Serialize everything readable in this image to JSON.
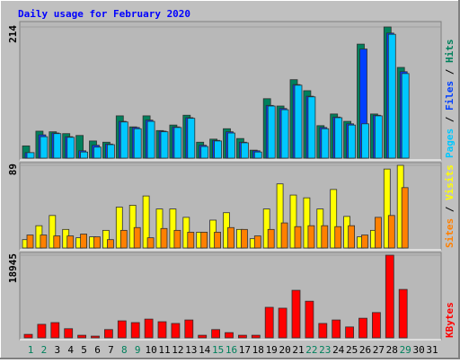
{
  "chart_data": {
    "type": "bar",
    "title": "Daily usage for February 2020",
    "categories": [
      "1",
      "2",
      "3",
      "4",
      "5",
      "6",
      "7",
      "8",
      "9",
      "10",
      "11",
      "12",
      "13",
      "14",
      "15",
      "16",
      "17",
      "18",
      "19",
      "20",
      "21",
      "22",
      "23",
      "24",
      "25",
      "26",
      "27",
      "28",
      "29",
      "30",
      "31"
    ],
    "category_colors": [
      "#00805c",
      "#00805c",
      "#000000",
      "#000000",
      "#000000",
      "#000000",
      "#000000",
      "#00805c",
      "#00805c",
      "#000000",
      "#000000",
      "#000000",
      "#000000",
      "#000000",
      "#00805c",
      "#00805c",
      "#000000",
      "#000000",
      "#000000",
      "#000000",
      "#000000",
      "#00805c",
      "#00805c",
      "#000000",
      "#000000",
      "#000000",
      "#000000",
      "#000000",
      "#00805c",
      "#000000",
      "#000000"
    ],
    "legend_separator": " / ",
    "panels": [
      {
        "ylim": [
          0,
          214
        ],
        "yticks": [
          214
        ],
        "series": [
          {
            "name": "Hits",
            "color": "#00805c",
            "values": [
              20,
              44,
              43,
              40,
              37,
              28,
              26,
              69,
              51,
              69,
              45,
              54,
              70,
              26,
              31,
              48,
              32,
              13,
              97,
              85,
              128,
              110,
              53,
              72,
              60,
              186,
              72,
              214,
              148,
              0,
              0
            ]
          },
          {
            "name": "Files",
            "color": "#0040ff",
            "values": [
              9,
              38,
              41,
              35,
              12,
              21,
              23,
              60,
              50,
              62,
              44,
              51,
              66,
              21,
              29,
              43,
              26,
              12,
              86,
              81,
              120,
              101,
              50,
              67,
              56,
              178,
              70,
              204,
              141,
              0,
              0
            ]
          },
          {
            "name": "Pages",
            "color": "#00c8ff",
            "values": [
              9,
              35,
              40,
              34,
              10,
              18,
              22,
              59,
              48,
              60,
              43,
              50,
              65,
              19,
              28,
              41,
              25,
              10,
              85,
              79,
              119,
              100,
              48,
              66,
              54,
              56,
              69,
              202,
              138,
              0,
              0
            ]
          }
        ]
      },
      {
        "ylim": [
          0,
          89
        ],
        "yticks": [
          89
        ],
        "series": [
          {
            "name": "Visits",
            "color": "#ffff00",
            "values": [
              9,
              24,
              35,
              20,
              11,
              12,
              19,
              44,
              46,
              56,
              42,
              42,
              33,
              17,
              30,
              38,
              20,
              10,
              42,
              69,
              57,
              54,
              42,
              63,
              34,
              12,
              19,
              85,
              89,
              0,
              0
            ]
          },
          {
            "name": "Sites",
            "color": "#ff8000",
            "values": [
              14,
              14,
              13,
              13,
              15,
              12,
              9,
              19,
              22,
              11,
              21,
              19,
              17,
              17,
              17,
              22,
              20,
              13,
              20,
              27,
              23,
              24,
              24,
              23,
              24,
              14,
              33,
              35,
              65,
              0,
              0
            ]
          }
        ]
      },
      {
        "ylim": [
          0,
          18945
        ],
        "yticks": [
          18945
        ],
        "series": [
          {
            "name": "KBytes",
            "color": "#ff0000",
            "values": [
              800,
              3100,
              3500,
              2100,
              600,
              400,
              1900,
              3900,
              3500,
              4300,
              3700,
              3300,
              4100,
              600,
              1900,
              1200,
              600,
              600,
              7000,
              6800,
              10900,
              8400,
              3300,
              4100,
              2500,
              4500,
              5800,
              18945,
              11100,
              0,
              0
            ]
          }
        ]
      }
    ]
  }
}
